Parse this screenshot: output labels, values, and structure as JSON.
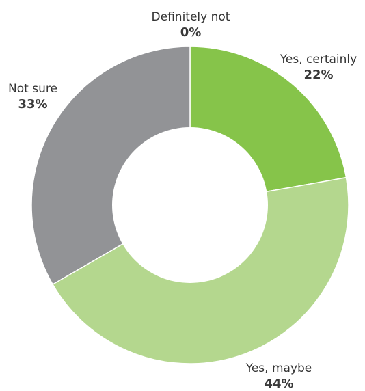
{
  "chart_data": {
    "type": "pie",
    "donut": true,
    "title": "",
    "categories": [
      "Yes, certainly",
      "Yes, maybe",
      "Not sure",
      "Definitely not"
    ],
    "values": [
      22,
      44,
      33,
      0
    ],
    "value_labels": [
      "22%",
      "44%",
      "33%",
      "0%"
    ],
    "colors": [
      "#86c44a",
      "#b4d78e",
      "#929396",
      "#cccccc"
    ],
    "legend": "none"
  }
}
